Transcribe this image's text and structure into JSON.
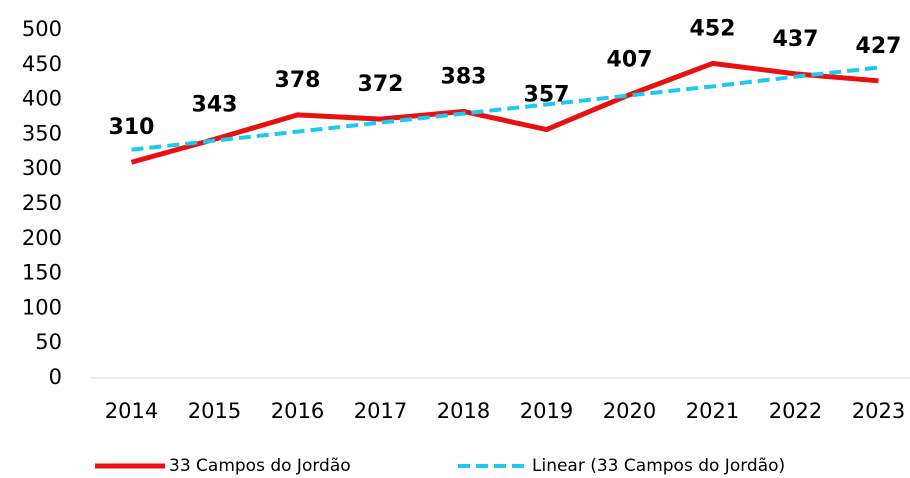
{
  "chart_data": {
    "type": "line",
    "categories": [
      "2014",
      "2015",
      "2016",
      "2017",
      "2018",
      "2019",
      "2020",
      "2021",
      "2022",
      "2023"
    ],
    "series": [
      {
        "name": "33 Campos do Jordão",
        "color": "#e81010",
        "values": [
          310,
          343,
          378,
          372,
          383,
          357,
          407,
          452,
          437,
          427
        ],
        "labels": true,
        "dashed": false
      },
      {
        "name": "Linear (33 Campos do Jordão)",
        "color": "#1ec8f0",
        "values": [
          328,
          341,
          354,
          367,
          380,
          393,
          406,
          419,
          433,
          446
        ],
        "labels": false,
        "dashed": true
      }
    ],
    "ylim": [
      0,
      500
    ],
    "yticks": [
      0,
      50,
      100,
      150,
      200,
      250,
      300,
      350,
      400,
      450,
      500
    ],
    "grid": false,
    "legend": "bottom"
  }
}
